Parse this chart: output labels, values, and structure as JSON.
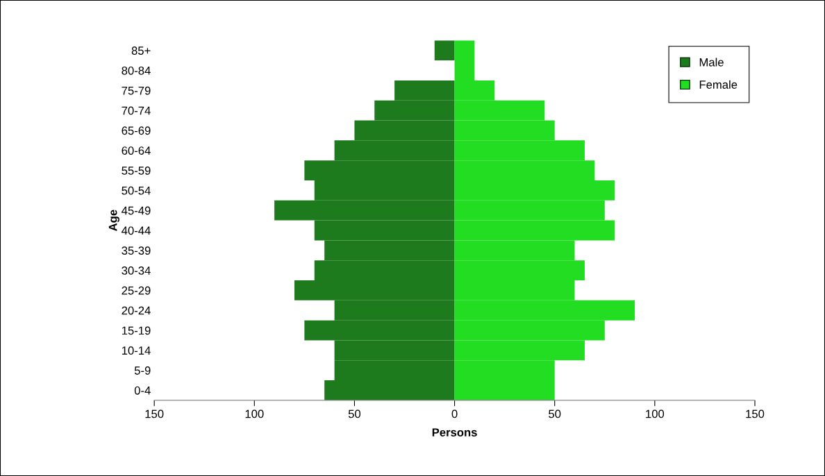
{
  "chart_data": {
    "type": "bar",
    "orientation": "horizontal",
    "xlabel": "Persons",
    "ylabel": "Age",
    "categories": [
      "85+",
      "80-84",
      "75-79",
      "70-74",
      "65-69",
      "60-64",
      "55-59",
      "50-54",
      "45-49",
      "40-44",
      "35-39",
      "30-34",
      "25-29",
      "20-24",
      "15-19",
      "10-14",
      "5-9",
      "0-4"
    ],
    "series": [
      {
        "name": "Male",
        "color": "#1d7a1d",
        "values": [
          -10,
          0,
          -30,
          -40,
          -50,
          -60,
          -75,
          -70,
          -90,
          -70,
          -65,
          -70,
          -80,
          -60,
          -75,
          -60,
          -60,
          -65
        ]
      },
      {
        "name": "Female",
        "color": "#22dd22",
        "values": [
          10,
          10,
          20,
          45,
          50,
          65,
          70,
          80,
          75,
          80,
          60,
          65,
          60,
          90,
          75,
          65,
          50,
          50
        ]
      }
    ],
    "xlim": [
      -150,
      150
    ],
    "xticks": [
      {
        "value": -150,
        "label": "150"
      },
      {
        "value": -100,
        "label": "100"
      },
      {
        "value": -50,
        "label": "50"
      },
      0,
      50,
      100,
      150
    ],
    "stacked": true,
    "grid": false,
    "legend": "top right"
  }
}
